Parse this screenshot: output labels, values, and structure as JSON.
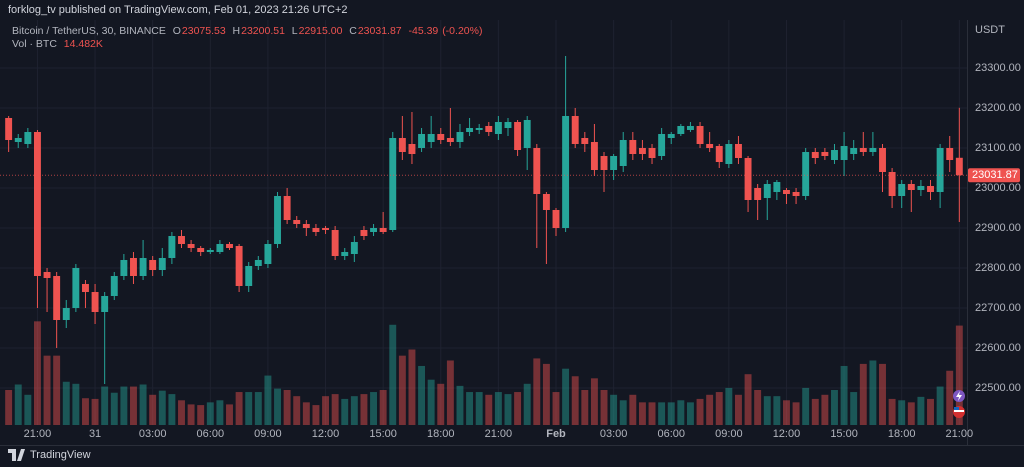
{
  "header": {
    "text": "forklog_tv published on TradingView.com, Feb 01, 2023 21:26 UTC+2"
  },
  "footer": {
    "brand": "TradingView"
  },
  "chart_data": {
    "type": "candlestick",
    "symbol": "Bitcoin / TetherUS, 30, BINANCE",
    "ohlc_labels": [
      "O",
      "H",
      "L",
      "C"
    ],
    "last_low_label": "22915.00",
    "change": -45.39,
    "change_pct": {
      "value": -0.2,
      "label": "(-0.20%)"
    },
    "currency": "USDT",
    "up_color": "#26a69a",
    "down_color": "#ef5350",
    "grid": true,
    "xlim": [
      -0.9,
      99.8
    ],
    "xticks": [
      {
        "value": 3,
        "label": "21:00"
      },
      {
        "value": 9,
        "label": "31"
      },
      {
        "value": 15,
        "label": "03:00"
      },
      {
        "value": 21,
        "label": "06:00"
      },
      {
        "value": 27,
        "label": "09:00"
      },
      {
        "value": 33,
        "label": "12:00"
      },
      {
        "value": 39,
        "label": "15:00"
      },
      {
        "value": 45,
        "label": "18:00"
      },
      {
        "value": 51,
        "label": "21:00"
      },
      {
        "value": 57,
        "label": "Feb"
      },
      {
        "value": 63,
        "label": "03:00"
      },
      {
        "value": 69,
        "label": "06:00"
      },
      {
        "value": 75,
        "label": "09:00"
      },
      {
        "value": 81,
        "label": "12:00"
      },
      {
        "value": 87,
        "label": "15:00"
      },
      {
        "value": 93,
        "label": "18:00"
      },
      {
        "value": 99,
        "label": "21:00"
      }
    ],
    "ylim": [
      22407.5,
      23420
    ],
    "yticks": [
      {
        "value": 22500,
        "label": "22500.00"
      },
      {
        "value": 22600,
        "label": "22600.00"
      },
      {
        "value": 22700,
        "label": "22700.00"
      },
      {
        "value": 22800,
        "label": "22800.00"
      },
      {
        "value": 22900,
        "label": "22900.00"
      },
      {
        "value": 23000,
        "label": "23000.00"
      },
      {
        "value": 23100,
        "label": "23100.00"
      },
      {
        "value": 23200,
        "label": "23200.00"
      },
      {
        "value": 23300,
        "label": "23300.00"
      }
    ],
    "open": [
      23175,
      23115,
      23110,
      23140,
      22790,
      22780,
      22670,
      22700,
      22760,
      22740,
      22690,
      22730,
      22780,
      22825,
      22780,
      22820,
      22795,
      22825,
      22880,
      22860,
      22850,
      22840,
      22840,
      22860,
      22855,
      22755,
      22805,
      22810,
      22860,
      22980,
      22920,
      22910,
      22900,
      22900,
      22895,
      22830,
      22835,
      22895,
      22890,
      22900,
      22895,
      23125,
      23110,
      23100,
      23115,
      23135,
      23125,
      23115,
      23140,
      23145,
      23155,
      23135,
      23150,
      23165,
      23100,
      23100,
      22985,
      22945,
      22900,
      23180,
      23125,
      23115,
      23080,
      23045,
      23055,
      23120,
      23100,
      23100,
      23080,
      23125,
      23135,
      23145,
      23155,
      23110,
      23105,
      23060,
      23110,
      23075,
      23000,
      22975,
      22990,
      22995,
      22990,
      22980,
      23090,
      23090,
      23070,
      23070,
      23085,
      23100,
      23090,
      23100,
      23040,
      22980,
      23010,
      22995,
      23005,
      22990,
      23100,
      23075.53
    ],
    "high": [
      23180,
      23135,
      23150,
      23145,
      22800,
      22790,
      22720,
      22810,
      22770,
      22760,
      22740,
      22790,
      22835,
      22840,
      22870,
      22830,
      22850,
      22890,
      22895,
      22870,
      22855,
      22850,
      22870,
      22865,
      22860,
      22815,
      22830,
      22870,
      22990,
      23000,
      22930,
      22920,
      22910,
      22905,
      22905,
      22850,
      22880,
      22905,
      22910,
      22940,
      23140,
      23180,
      23190,
      23150,
      23180,
      23150,
      23200,
      23160,
      23175,
      23160,
      23165,
      23180,
      23175,
      23170,
      23180,
      23110,
      22990,
      22950,
      23330,
      23200,
      23140,
      23160,
      23090,
      23085,
      23140,
      23140,
      23120,
      23110,
      23150,
      23140,
      23160,
      23165,
      23165,
      23140,
      23110,
      23120,
      23130,
      23080,
      23010,
      23020,
      23020,
      23000,
      23000,
      23100,
      23100,
      23100,
      23110,
      23140,
      23120,
      23140,
      23140,
      23110,
      23050,
      23020,
      23020,
      23020,
      23020,
      23110,
      23130,
      23200.51
    ],
    "low": [
      23090,
      23100,
      23100,
      22700,
      22690,
      22600,
      22650,
      22690,
      22700,
      22660,
      22510,
      22720,
      22770,
      22760,
      22770,
      22780,
      22780,
      22810,
      22850,
      22840,
      22830,
      22835,
      22835,
      22845,
      22740,
      22740,
      22795,
      22800,
      22850,
      22910,
      22900,
      22880,
      22880,
      22885,
      22820,
      22820,
      22815,
      22870,
      22880,
      22885,
      22890,
      23070,
      23060,
      23090,
      23100,
      23110,
      23105,
      23100,
      23130,
      23135,
      23130,
      23120,
      23130,
      23080,
      23045,
      22850,
      22810,
      22880,
      22890,
      23100,
      23090,
      23030,
      22990,
      23020,
      23040,
      23070,
      23070,
      23060,
      23070,
      23110,
      23130,
      23140,
      23100,
      23090,
      23050,
      23050,
      23060,
      22940,
      22920,
      22920,
      22970,
      22960,
      22960,
      22970,
      23060,
      23070,
      23060,
      23030,
      23070,
      23080,
      23080,
      22990,
      22950,
      22950,
      22940,
      22980,
      22970,
      22950,
      23040,
      22915
    ],
    "close": [
      23120,
      23125,
      23140,
      22780,
      22775,
      22670,
      22700,
      22800,
      22740,
      22690,
      22730,
      22780,
      22820,
      22780,
      22825,
      22795,
      22825,
      22880,
      22860,
      22850,
      22840,
      22845,
      22860,
      22850,
      22755,
      22805,
      22820,
      22860,
      22980,
      22920,
      22910,
      22900,
      22890,
      22895,
      22830,
      22840,
      22865,
      22880,
      22900,
      22890,
      23125,
      23090,
      23085,
      23135,
      23135,
      23120,
      23115,
      23140,
      23150,
      23150,
      23140,
      23165,
      23165,
      23095,
      23170,
      22985,
      22945,
      22900,
      23180,
      23110,
      23110,
      23045,
      23045,
      23080,
      23120,
      23085,
      23085,
      23075,
      23135,
      23135,
      23155,
      23155,
      23110,
      23100,
      23065,
      23110,
      23075,
      22970,
      22970,
      23010,
      23015,
      22985,
      22980,
      23090,
      23075,
      23080,
      23095,
      23105,
      23100,
      23090,
      23100,
      23040,
      22980,
      23010,
      22995,
      23005,
      22990,
      23100,
      23070,
      23031.87
    ],
    "volume_lim": [
      0,
      59
    ],
    "volume": {
      "name": "Vol · BTC",
      "last_label": "14.482K",
      "values": [
        5.1,
        5.9,
        4.4,
        15.1,
        10.1,
        10.1,
        6.3,
        6.0,
        3.9,
        3.8,
        5.6,
        4.7,
        5.6,
        5.6,
        5.9,
        4.4,
        5.0,
        4.5,
        3.6,
        3.0,
        2.9,
        3.3,
        3.6,
        3.0,
        4.8,
        4.8,
        4.8,
        7.2,
        5.3,
        5.1,
        4.2,
        3.3,
        2.9,
        4.2,
        4.5,
        3.8,
        4.2,
        4.5,
        4.8,
        5.1,
        14.6,
        10.1,
        11.0,
        8.6,
        6.6,
        6.0,
        9.4,
        5.7,
        4.8,
        4.8,
        4.4,
        4.8,
        4.5,
        4.8,
        6.0,
        9.7,
        8.9,
        4.8,
        8.2,
        7.1,
        5.1,
        6.8,
        5.1,
        4.4,
        3.6,
        4.4,
        3.3,
        3.3,
        3.3,
        3.3,
        3.6,
        3.3,
        3.8,
        4.4,
        4.8,
        5.4,
        4.4,
        7.4,
        5.1,
        4.2,
        4.2,
        3.6,
        3.3,
        5.4,
        3.8,
        4.4,
        5.1,
        8.6,
        4.8,
        8.9,
        9.4,
        8.9,
        3.8,
        3.6,
        3.3,
        4.1,
        3.8,
        5.6,
        7.9,
        14.482
      ]
    }
  }
}
